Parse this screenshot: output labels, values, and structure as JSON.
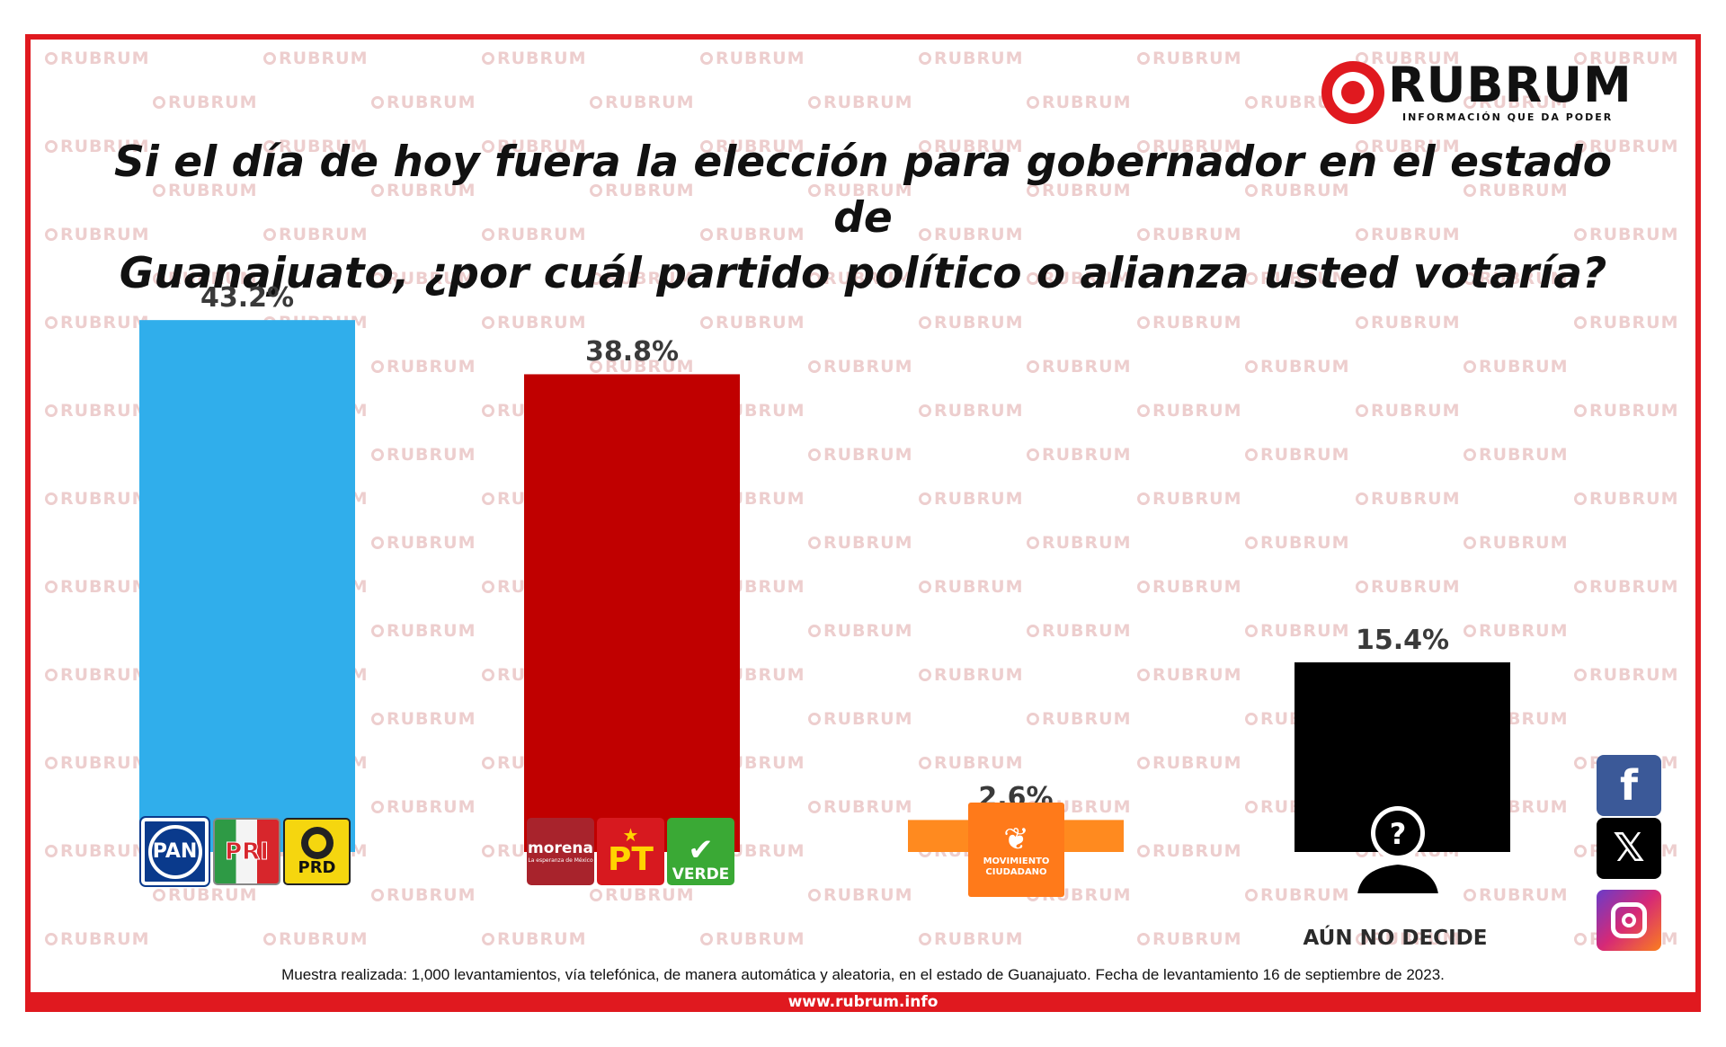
{
  "brand": {
    "name": "RUBRUM",
    "tagline": "INFORMACIÓN QUE DA PODER",
    "watermark": "RUBRUM",
    "website": "www.rubrum.info",
    "accent_color": "#e0191f"
  },
  "title_lines": [
    "Si el día de hoy fuera la elección para gobernador en el estado de",
    "Guanajuato, ¿por cuál  partido político o alianza usted votaría?"
  ],
  "chart_data": {
    "type": "bar",
    "title": "Si el día de hoy fuera la elección para gobernador en el estado de Guanajuato, ¿por cuál  partido político o alianza usted votaría?",
    "categories": [
      "PAN-PRI-PRD",
      "Morena-PT-Verde",
      "Movimiento Ciudadano",
      "Aún no decide"
    ],
    "values": [
      43.2,
      38.8,
      2.6,
      15.4
    ],
    "value_labels": [
      "43.2%",
      "38.8%",
      "2.6%",
      "15.4%"
    ],
    "colors": [
      "#30aeeb",
      "#c00000",
      "#ff8a1f",
      "#000000"
    ],
    "unit": "%",
    "grid": false,
    "legend": "none"
  },
  "party_logos": {
    "pan": "PAN",
    "pri": "PRI",
    "prd": "PRD",
    "morena": "morena",
    "morena_sub": "La esperanza de México",
    "pt": "PT",
    "verde": "VERDE",
    "mc_line1": "MOVIMIENTO",
    "mc_line2": "CIUDADANO"
  },
  "undecided_caption": "AÚN NO DECIDE",
  "undecided_icon": "question-person-icon",
  "note": "Muestra realizada: 1,000 levantamientos, vía telefónica, de manera automática y aleatoria, en el estado de Guanajuato. Fecha de levantamiento 16 de septiembre de 2023.",
  "social_icons": [
    "facebook-icon",
    "x-icon",
    "instagram-icon"
  ]
}
